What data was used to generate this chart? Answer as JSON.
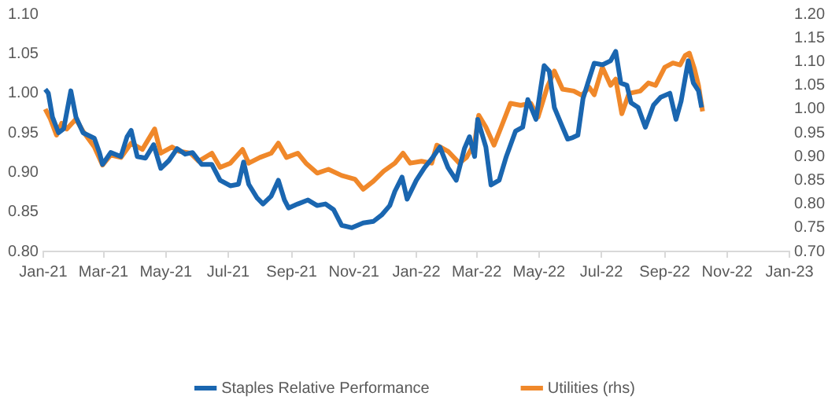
{
  "chart_data": {
    "type": "line",
    "grid": false,
    "legend": "bottom",
    "marker": "none",
    "line_style": "solid",
    "xlim": [
      "2021-01",
      "2023-01"
    ],
    "xticks": [
      {
        "value": "2021-01",
        "label": "Jan-21"
      },
      {
        "value": "2021-03",
        "label": "Mar-21"
      },
      {
        "value": "2021-05",
        "label": "May-21"
      },
      {
        "value": "2021-07",
        "label": "Jul-21"
      },
      {
        "value": "2021-09",
        "label": "Sep-21"
      },
      {
        "value": "2021-11",
        "label": "Nov-21"
      },
      {
        "value": "2022-01",
        "label": "Jan-22"
      },
      {
        "value": "2022-03",
        "label": "Mar-22"
      },
      {
        "value": "2022-05",
        "label": "May-22"
      },
      {
        "value": "2022-07",
        "label": "Jul-22"
      },
      {
        "value": "2022-09",
        "label": "Sep-22"
      },
      {
        "value": "2022-11",
        "label": "Nov-22"
      },
      {
        "value": "2023-01",
        "label": "Jan-23"
      }
    ],
    "ylim": [
      0.8,
      1.1
    ],
    "yticks": [
      {
        "value": 0.8,
        "label": "0.80"
      },
      {
        "value": 0.85,
        "label": "0.85"
      },
      {
        "value": 0.9,
        "label": "0.90"
      },
      {
        "value": 0.95,
        "label": "0.95"
      },
      {
        "value": 1,
        "label": "1.00"
      },
      {
        "value": 1.05,
        "label": "1.05"
      },
      {
        "value": 1.1,
        "label": "1.10"
      }
    ],
    "y2lim": [
      0.7,
      1.2
    ],
    "y2ticks": [
      {
        "value": 0.7,
        "label": "0.70"
      },
      {
        "value": 0.75,
        "label": "0.75"
      },
      {
        "value": 0.8,
        "label": "0.80"
      },
      {
        "value": 0.85,
        "label": "0.85"
      },
      {
        "value": 0.9,
        "label": "0.90"
      },
      {
        "value": 0.95,
        "label": "0.95"
      },
      {
        "value": 1,
        "label": "1.00"
      },
      {
        "value": 1.05,
        "label": "1.05"
      },
      {
        "value": 1.1,
        "label": "1.10"
      },
      {
        "value": 1.15,
        "label": "1.15"
      },
      {
        "value": 1.2,
        "label": "1.20"
      }
    ],
    "series": [
      {
        "name": "Staples Relative Performance",
        "color": "#1a66b0",
        "axis": "y",
        "x": [
          "2021-01-03",
          "2021-01-06",
          "2021-01-10",
          "2021-01-16",
          "2021-01-21",
          "2021-01-28",
          "2021-02-02",
          "2021-02-09",
          "2021-02-20",
          "2021-02-25",
          "2021-02-28",
          "2021-03-08",
          "2021-03-18",
          "2021-03-24",
          "2021-03-28",
          "2021-04-03",
          "2021-04-11",
          "2021-04-19",
          "2021-04-26",
          "2021-05-04",
          "2021-05-12",
          "2021-05-20",
          "2021-05-27",
          "2021-06-05",
          "2021-06-15",
          "2021-06-23",
          "2021-07-03",
          "2021-07-11",
          "2021-07-16",
          "2021-07-21",
          "2021-07-29",
          "2021-08-04",
          "2021-08-12",
          "2021-08-19",
          "2021-08-25",
          "2021-08-29",
          "2021-09-07",
          "2021-09-17",
          "2021-09-26",
          "2021-10-04",
          "2021-10-12",
          "2021-10-20",
          "2021-10-30",
          "2021-11-10",
          "2021-11-20",
          "2021-11-28",
          "2021-12-06",
          "2021-12-11",
          "2021-12-18",
          "2021-12-23",
          "2022-01-01",
          "2022-01-09",
          "2022-01-16",
          "2022-01-24",
          "2022-02-01",
          "2022-02-09",
          "2022-02-17",
          "2022-02-22",
          "2022-02-27",
          "2022-03-02",
          "2022-03-10",
          "2022-03-15",
          "2022-03-23",
          "2022-03-30",
          "2022-04-08",
          "2022-04-15",
          "2022-04-20",
          "2022-04-28",
          "2022-05-06",
          "2022-05-11",
          "2022-05-16",
          "2022-05-24",
          "2022-05-29",
          "2022-06-03",
          "2022-06-08",
          "2022-06-13",
          "2022-06-19",
          "2022-06-24",
          "2022-07-02",
          "2022-07-10",
          "2022-07-15",
          "2022-07-20",
          "2022-07-26",
          "2022-07-30",
          "2022-08-06",
          "2022-08-13",
          "2022-08-21",
          "2022-08-28",
          "2022-09-06",
          "2022-09-12",
          "2022-09-17",
          "2022-09-24",
          "2022-09-29",
          "2022-10-04",
          "2022-10-07"
        ],
        "values": [
          1.005,
          1.0,
          0.97,
          0.95,
          0.955,
          1.003,
          0.97,
          0.95,
          0.943,
          0.925,
          0.91,
          0.925,
          0.92,
          0.945,
          0.953,
          0.92,
          0.918,
          0.935,
          0.905,
          0.915,
          0.93,
          0.923,
          0.925,
          0.91,
          0.91,
          0.89,
          0.883,
          0.885,
          0.913,
          0.885,
          0.868,
          0.86,
          0.87,
          0.89,
          0.865,
          0.855,
          0.86,
          0.865,
          0.858,
          0.86,
          0.853,
          0.833,
          0.83,
          0.836,
          0.838,
          0.846,
          0.858,
          0.876,
          0.894,
          0.866,
          0.89,
          0.906,
          0.917,
          0.932,
          0.906,
          0.89,
          0.93,
          0.945,
          0.92,
          0.967,
          0.932,
          0.884,
          0.89,
          0.92,
          0.952,
          0.957,
          0.992,
          0.967,
          1.035,
          1.028,
          0.982,
          0.957,
          0.942,
          0.944,
          0.947,
          0.993,
          1.018,
          1.038,
          1.036,
          1.041,
          1.053,
          1.013,
          1.01,
          0.988,
          0.982,
          0.957,
          0.985,
          0.995,
          1.0,
          0.967,
          0.99,
          1.041,
          1.013,
          1.003,
          0.982
        ]
      },
      {
        "name": "Utilities (rhs)",
        "color": "#f0882a",
        "axis": "y2",
        "x": [
          "2021-01-03",
          "2021-01-08",
          "2021-01-14",
          "2021-01-19",
          "2021-01-24",
          "2021-02-02",
          "2021-02-09",
          "2021-02-20",
          "2021-02-28",
          "2021-03-08",
          "2021-03-18",
          "2021-03-28",
          "2021-04-08",
          "2021-04-20",
          "2021-04-26",
          "2021-05-07",
          "2021-05-14",
          "2021-05-25",
          "2021-06-02",
          "2021-06-15",
          "2021-06-23",
          "2021-07-03",
          "2021-07-15",
          "2021-07-21",
          "2021-08-01",
          "2021-08-12",
          "2021-08-19",
          "2021-08-27",
          "2021-09-07",
          "2021-09-15",
          "2021-09-26",
          "2021-10-07",
          "2021-10-20",
          "2021-11-02",
          "2021-11-10",
          "2021-11-20",
          "2021-11-30",
          "2021-12-11",
          "2021-12-19",
          "2021-12-26",
          "2022-01-06",
          "2022-01-16",
          "2022-01-21",
          "2022-02-01",
          "2022-02-12",
          "2022-02-19",
          "2022-02-27",
          "2022-03-03",
          "2022-03-10",
          "2022-03-18",
          "2022-03-25",
          "2022-04-03",
          "2022-04-13",
          "2022-04-23",
          "2022-04-30",
          "2022-05-09",
          "2022-05-16",
          "2022-05-24",
          "2022-06-04",
          "2022-06-12",
          "2022-06-19",
          "2022-06-24",
          "2022-07-02",
          "2022-07-10",
          "2022-07-15",
          "2022-07-21",
          "2022-07-28",
          "2022-08-08",
          "2022-08-16",
          "2022-08-23",
          "2022-09-01",
          "2022-09-09",
          "2022-09-16",
          "2022-09-21",
          "2022-09-25",
          "2022-09-30",
          "2022-10-04",
          "2022-10-08"
        ],
        "values": [
          1.0,
          0.979,
          0.945,
          0.97,
          0.958,
          0.979,
          0.953,
          0.92,
          0.882,
          0.903,
          0.898,
          0.928,
          0.915,
          0.958,
          0.907,
          0.92,
          0.911,
          0.907,
          0.89,
          0.907,
          0.877,
          0.886,
          0.915,
          0.886,
          0.898,
          0.907,
          0.928,
          0.898,
          0.907,
          0.886,
          0.865,
          0.873,
          0.86,
          0.852,
          0.831,
          0.848,
          0.869,
          0.886,
          0.907,
          0.886,
          0.89,
          0.886,
          0.924,
          0.911,
          0.886,
          0.898,
          0.928,
          0.987,
          0.962,
          0.924,
          0.962,
          1.012,
          1.008,
          1.012,
          0.983,
          1.046,
          1.08,
          1.042,
          1.038,
          1.029,
          1.046,
          1.03,
          1.088,
          1.05,
          1.063,
          0.99,
          1.033,
          1.038,
          1.055,
          1.05,
          1.088,
          1.097,
          1.093,
          1.113,
          1.118,
          1.085,
          1.05,
          0.995
        ]
      }
    ]
  }
}
